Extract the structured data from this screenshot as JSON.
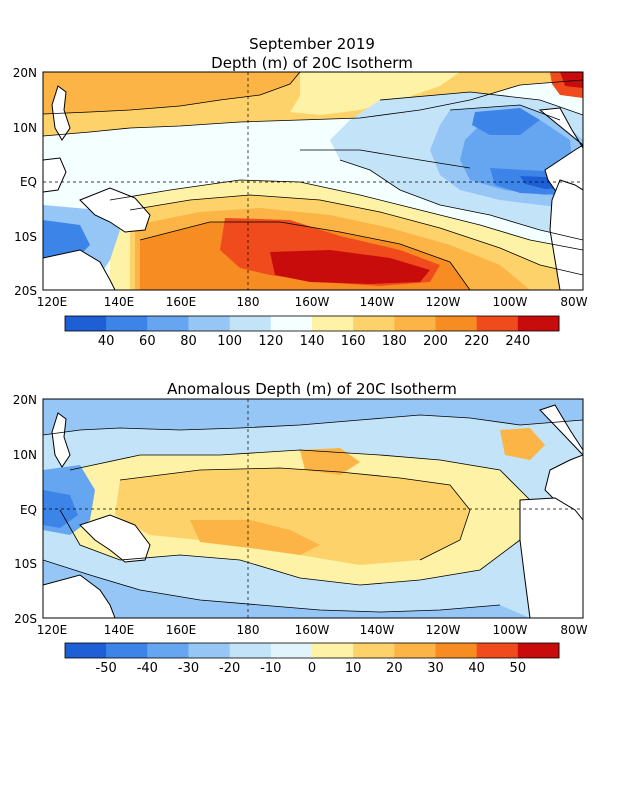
{
  "figure": {
    "title_line1": "September 2019",
    "title_line2": "Depth (m) of 20C Isotherm",
    "title_anomaly": "Anomalous Depth (m) of 20C Isotherm"
  },
  "axes": {
    "lon_labels": [
      "120E",
      "140E",
      "160E",
      "180",
      "160W",
      "140W",
      "120W",
      "100W",
      "80W"
    ],
    "lat_labels": [
      "20N",
      "10N",
      "EQ",
      "10S",
      "20S"
    ]
  },
  "colorbar_depth": {
    "labels": [
      "40",
      "60",
      "80",
      "100",
      "120",
      "140",
      "160",
      "180",
      "200",
      "220",
      "240"
    ],
    "colors": [
      "#1f5fd6",
      "#3d84e8",
      "#66a6f0",
      "#96c6f5",
      "#c3e4f8",
      "#f4ffff",
      "#fdf2a5",
      "#fdd26a",
      "#fbb445",
      "#f78d22",
      "#ef4b1c",
      "#c80c0c"
    ]
  },
  "colorbar_anomaly": {
    "labels": [
      "-50",
      "-40",
      "-30",
      "-20",
      "-10",
      "0",
      "10",
      "20",
      "30",
      "40",
      "50"
    ],
    "colors": [
      "#1f5fd6",
      "#3d84e8",
      "#66a6f0",
      "#96c6f5",
      "#c3e4f8",
      "#dff4fb",
      "#fdf2a5",
      "#fdd26a",
      "#fbb445",
      "#f78d22",
      "#ef4b1c",
      "#c80c0c"
    ]
  }
}
